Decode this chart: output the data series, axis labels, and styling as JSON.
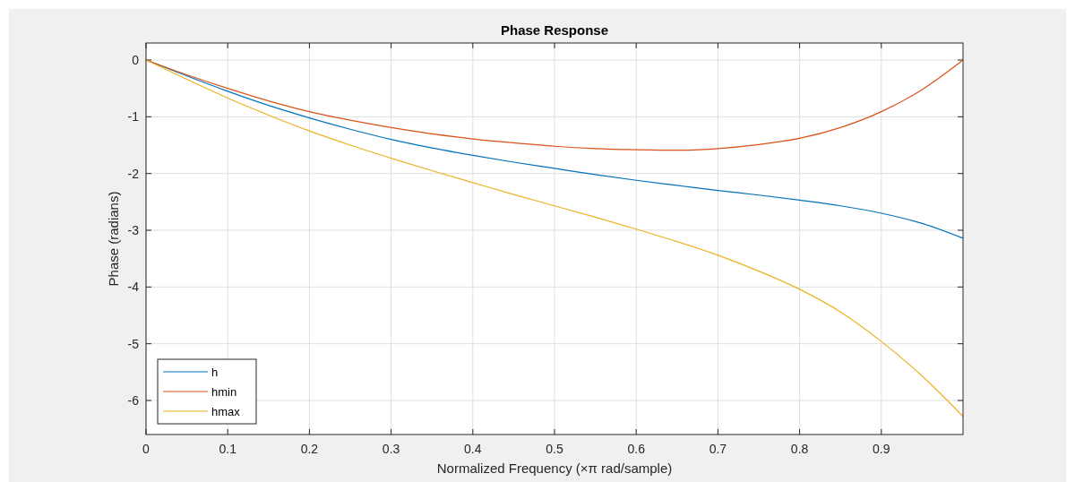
{
  "chart_data": {
    "type": "line",
    "title": "Phase Response",
    "xlabel": "Normalized Frequency (×π rad/sample)",
    "ylabel": "Phase (radians)",
    "x": [
      0,
      0.05,
      0.1,
      0.15,
      0.2,
      0.25,
      0.3,
      0.35,
      0.4,
      0.45,
      0.5,
      0.55,
      0.6,
      0.65,
      0.7,
      0.75,
      0.8,
      0.85,
      0.9,
      0.95,
      1.0
    ],
    "series": [
      {
        "name": "h",
        "color": "#0072bd",
        "values": [
          0,
          -0.28,
          -0.55,
          -0.8,
          -1.02,
          -1.22,
          -1.4,
          -1.55,
          -1.68,
          -1.8,
          -1.91,
          -2.02,
          -2.12,
          -2.21,
          -2.3,
          -2.38,
          -2.47,
          -2.57,
          -2.7,
          -2.88,
          -3.14
        ]
      },
      {
        "name": "hmin",
        "color": "#d95319",
        "values": [
          0,
          -0.26,
          -0.5,
          -0.72,
          -0.91,
          -1.06,
          -1.19,
          -1.3,
          -1.39,
          -1.46,
          -1.52,
          -1.56,
          -1.58,
          -1.59,
          -1.56,
          -1.49,
          -1.38,
          -1.19,
          -0.91,
          -0.52,
          0
        ]
      },
      {
        "name": "hmax",
        "color": "#edb120",
        "values": [
          0,
          -0.34,
          -0.67,
          -0.97,
          -1.25,
          -1.5,
          -1.73,
          -1.95,
          -2.16,
          -2.37,
          -2.57,
          -2.77,
          -2.98,
          -3.2,
          -3.44,
          -3.72,
          -4.04,
          -4.44,
          -4.96,
          -5.57,
          -6.28
        ]
      }
    ],
    "xlim": [
      0,
      1
    ],
    "xticks": [
      0,
      0.1,
      0.2,
      0.3,
      0.4,
      0.5,
      0.6,
      0.7,
      0.8,
      0.9
    ],
    "ylim": [
      -6.6,
      0.3
    ],
    "yticks": [
      0,
      -1,
      -2,
      -3,
      -4,
      -5,
      -6
    ],
    "grid": true,
    "legend": "bottom left"
  }
}
